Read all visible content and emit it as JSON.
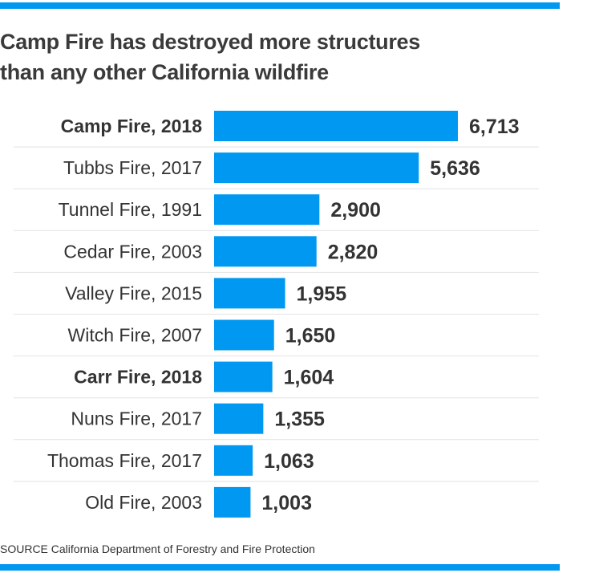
{
  "chart_data": {
    "type": "bar",
    "orientation": "horizontal",
    "title": "Camp Fire has destroyed more structures than any other California wildfire",
    "title_lines": [
      "Camp Fire has destroyed more structures",
      "than any other California wildfire"
    ],
    "categories": [
      "Camp Fire, 2018",
      "Tubbs Fire, 2017",
      "Tunnel Fire, 1991",
      "Cedar Fire, 2003",
      "Valley Fire, 2015",
      "Witch Fire, 2007",
      "Carr Fire, 2018",
      "Nuns Fire, 2017",
      "Thomas Fire, 2017",
      "Old Fire, 2003"
    ],
    "values": [
      6713,
      5636,
      2900,
      2820,
      1955,
      1650,
      1604,
      1355,
      1063,
      1003
    ],
    "value_labels": [
      "6,713",
      "5,636",
      "2,900",
      "2,820",
      "1,955",
      "1,650",
      "1,604",
      "1,355",
      "1,063",
      "1,003"
    ],
    "highlighted": [
      "Camp Fire, 2018",
      "Carr Fire, 2018"
    ],
    "xlim": [
      0,
      6713
    ],
    "xlabel": "",
    "ylabel": "",
    "grid": false,
    "bar_color": "#0098f0",
    "source": "SOURCE California Department of Forestry and Fire Protection"
  }
}
